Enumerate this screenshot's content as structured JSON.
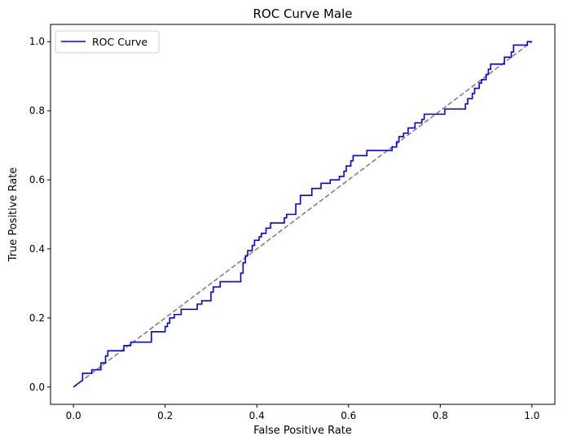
{
  "chart_data": {
    "type": "line",
    "title": "ROC Curve Male",
    "xlabel": "False Positive Rate",
    "ylabel": "True Positive Rate",
    "xlim": [
      -0.05,
      1.05
    ],
    "ylim": [
      -0.05,
      1.05
    ],
    "xticks": [
      0.0,
      0.2,
      0.4,
      0.6,
      0.8,
      1.0
    ],
    "yticks": [
      0.0,
      0.2,
      0.4,
      0.6,
      0.8,
      1.0
    ],
    "xtick_labels": [
      "0.0",
      "0.2",
      "0.4",
      "0.6",
      "0.8",
      "1.0"
    ],
    "ytick_labels": [
      "0.0",
      "0.2",
      "0.4",
      "0.6",
      "0.8",
      "1.0"
    ],
    "grid": false,
    "legend_position": "upper-left",
    "series": [
      {
        "name": "ROC Curve",
        "color": "#0000ff",
        "style": "solid",
        "points": [
          [
            0.0,
            0.0
          ],
          [
            0.01,
            0.01
          ],
          [
            0.02,
            0.02
          ],
          [
            0.02,
            0.04
          ],
          [
            0.04,
            0.04
          ],
          [
            0.04,
            0.05
          ],
          [
            0.06,
            0.05
          ],
          [
            0.06,
            0.07
          ],
          [
            0.07,
            0.07
          ],
          [
            0.07,
            0.09
          ],
          [
            0.075,
            0.09
          ],
          [
            0.075,
            0.105
          ],
          [
            0.11,
            0.105
          ],
          [
            0.11,
            0.12
          ],
          [
            0.125,
            0.12
          ],
          [
            0.125,
            0.13
          ],
          [
            0.17,
            0.13
          ],
          [
            0.17,
            0.16
          ],
          [
            0.2,
            0.16
          ],
          [
            0.2,
            0.175
          ],
          [
            0.205,
            0.175
          ],
          [
            0.205,
            0.185
          ],
          [
            0.21,
            0.185
          ],
          [
            0.21,
            0.2
          ],
          [
            0.22,
            0.2
          ],
          [
            0.22,
            0.21
          ],
          [
            0.235,
            0.21
          ],
          [
            0.235,
            0.225
          ],
          [
            0.27,
            0.225
          ],
          [
            0.27,
            0.24
          ],
          [
            0.28,
            0.24
          ],
          [
            0.28,
            0.25
          ],
          [
            0.3,
            0.25
          ],
          [
            0.3,
            0.275
          ],
          [
            0.305,
            0.275
          ],
          [
            0.305,
            0.29
          ],
          [
            0.32,
            0.29
          ],
          [
            0.32,
            0.305
          ],
          [
            0.365,
            0.305
          ],
          [
            0.365,
            0.33
          ],
          [
            0.37,
            0.33
          ],
          [
            0.37,
            0.36
          ],
          [
            0.375,
            0.36
          ],
          [
            0.375,
            0.38
          ],
          [
            0.38,
            0.38
          ],
          [
            0.38,
            0.395
          ],
          [
            0.39,
            0.395
          ],
          [
            0.39,
            0.41
          ],
          [
            0.395,
            0.41
          ],
          [
            0.395,
            0.425
          ],
          [
            0.405,
            0.425
          ],
          [
            0.405,
            0.435
          ],
          [
            0.41,
            0.435
          ],
          [
            0.41,
            0.445
          ],
          [
            0.42,
            0.445
          ],
          [
            0.42,
            0.46
          ],
          [
            0.43,
            0.46
          ],
          [
            0.43,
            0.475
          ],
          [
            0.46,
            0.475
          ],
          [
            0.46,
            0.49
          ],
          [
            0.465,
            0.49
          ],
          [
            0.465,
            0.5
          ],
          [
            0.485,
            0.5
          ],
          [
            0.485,
            0.53
          ],
          [
            0.495,
            0.53
          ],
          [
            0.495,
            0.555
          ],
          [
            0.52,
            0.555
          ],
          [
            0.52,
            0.575
          ],
          [
            0.54,
            0.575
          ],
          [
            0.54,
            0.59
          ],
          [
            0.56,
            0.59
          ],
          [
            0.56,
            0.6
          ],
          [
            0.58,
            0.6
          ],
          [
            0.58,
            0.61
          ],
          [
            0.59,
            0.61
          ],
          [
            0.59,
            0.625
          ],
          [
            0.595,
            0.625
          ],
          [
            0.595,
            0.64
          ],
          [
            0.605,
            0.64
          ],
          [
            0.605,
            0.655
          ],
          [
            0.61,
            0.655
          ],
          [
            0.61,
            0.67
          ],
          [
            0.64,
            0.67
          ],
          [
            0.64,
            0.685
          ],
          [
            0.695,
            0.685
          ],
          [
            0.695,
            0.695
          ],
          [
            0.705,
            0.695
          ],
          [
            0.705,
            0.71
          ],
          [
            0.71,
            0.71
          ],
          [
            0.71,
            0.725
          ],
          [
            0.72,
            0.725
          ],
          [
            0.72,
            0.735
          ],
          [
            0.73,
            0.735
          ],
          [
            0.73,
            0.75
          ],
          [
            0.745,
            0.75
          ],
          [
            0.745,
            0.765
          ],
          [
            0.76,
            0.765
          ],
          [
            0.76,
            0.775
          ],
          [
            0.765,
            0.775
          ],
          [
            0.765,
            0.79
          ],
          [
            0.81,
            0.79
          ],
          [
            0.81,
            0.805
          ],
          [
            0.855,
            0.805
          ],
          [
            0.855,
            0.82
          ],
          [
            0.86,
            0.82
          ],
          [
            0.86,
            0.835
          ],
          [
            0.87,
            0.835
          ],
          [
            0.87,
            0.85
          ],
          [
            0.875,
            0.85
          ],
          [
            0.875,
            0.865
          ],
          [
            0.885,
            0.865
          ],
          [
            0.885,
            0.88
          ],
          [
            0.89,
            0.88
          ],
          [
            0.89,
            0.89
          ],
          [
            0.9,
            0.89
          ],
          [
            0.9,
            0.905
          ],
          [
            0.905,
            0.905
          ],
          [
            0.905,
            0.92
          ],
          [
            0.91,
            0.92
          ],
          [
            0.91,
            0.935
          ],
          [
            0.94,
            0.935
          ],
          [
            0.94,
            0.955
          ],
          [
            0.955,
            0.955
          ],
          [
            0.955,
            0.97
          ],
          [
            0.96,
            0.97
          ],
          [
            0.96,
            0.99
          ],
          [
            0.99,
            0.99
          ],
          [
            0.99,
            1.0
          ],
          [
            1.0,
            1.0
          ]
        ]
      },
      {
        "color": "#808080",
        "style": "dashed",
        "points": [
          [
            0.0,
            0.0
          ],
          [
            1.0,
            1.0
          ]
        ]
      }
    ]
  }
}
